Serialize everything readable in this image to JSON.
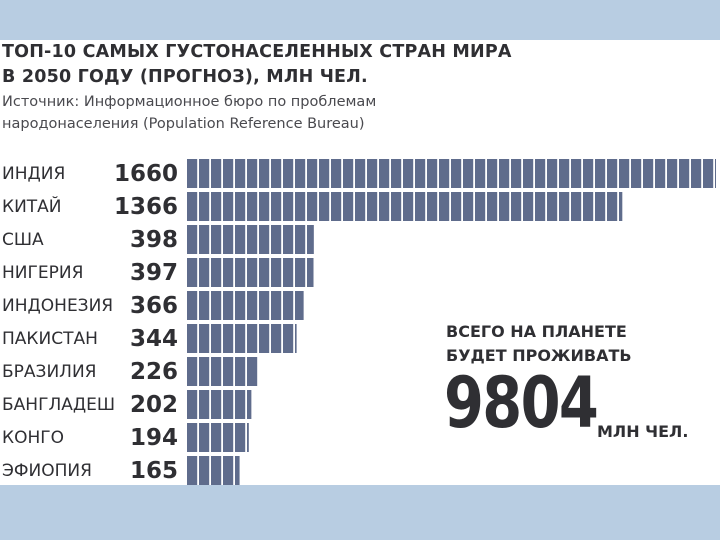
{
  "title_line1": "ТОП-10 САМЫХ ГУСТОНАСЕЛЕННЫХ СТРАН МИРА",
  "title_line2": "В 2050 ГОДУ (ПРОГНОЗ), МЛН ЧЕЛ.",
  "source_line1": "Источник: Информационное бюро по проблемам",
  "source_line2": "народонаселения (Population Reference Bureau)",
  "total": {
    "label_line1": "ВСЕГО НА ПЛАНЕТЕ",
    "label_line2": "БУДЕТ ПРОЖИВАТЬ",
    "value": "9804",
    "unit": "МЛН ЧЕЛ."
  },
  "colors": {
    "bar": "#5f6c8c",
    "text": "#2f2f33",
    "frame": "#b8cde2"
  },
  "chart_data": {
    "type": "bar",
    "orientation": "horizontal",
    "title": "ТОП-10 САМЫХ ГУСТОНАСЕЛЕННЫХ СТРАН МИРА В 2050 ГОДУ (ПРОГНОЗ), МЛН ЧЕЛ.",
    "categories": [
      "ИНДИЯ",
      "КИТАЙ",
      "США",
      "НИГЕРИЯ",
      "ИНДОНЕЗИЯ",
      "ПАКИСТАН",
      "БРАЗИЛИЯ",
      "БАНГЛАДЕШ",
      "КОНГО",
      "ЭФИОПИЯ"
    ],
    "values": [
      1660,
      1366,
      398,
      397,
      366,
      344,
      226,
      202,
      194,
      165
    ],
    "bar_style": "segmented",
    "xlim": [
      0,
      1660
    ],
    "grid": false,
    "legend": "none"
  }
}
